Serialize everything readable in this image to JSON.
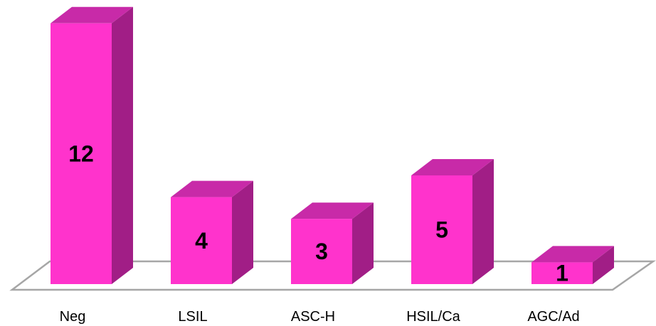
{
  "chart_data": {
    "type": "bar",
    "categories": [
      "Neg",
      "LSIL",
      "ASC-H",
      "HSIL/Ca",
      "AGC/Ad"
    ],
    "values": [
      12,
      4,
      3,
      5,
      1
    ],
    "title": "",
    "xlabel": "",
    "ylabel": "",
    "ylim": [
      0,
      12
    ],
    "grid": false,
    "legend": "none",
    "style": "3d-column",
    "colors": {
      "bar_front": "#FF33CC",
      "bar_top": "#C82AA8",
      "bar_side": "#A11E86",
      "floor_stroke": "#A6A6A6",
      "label": "#000000"
    }
  }
}
